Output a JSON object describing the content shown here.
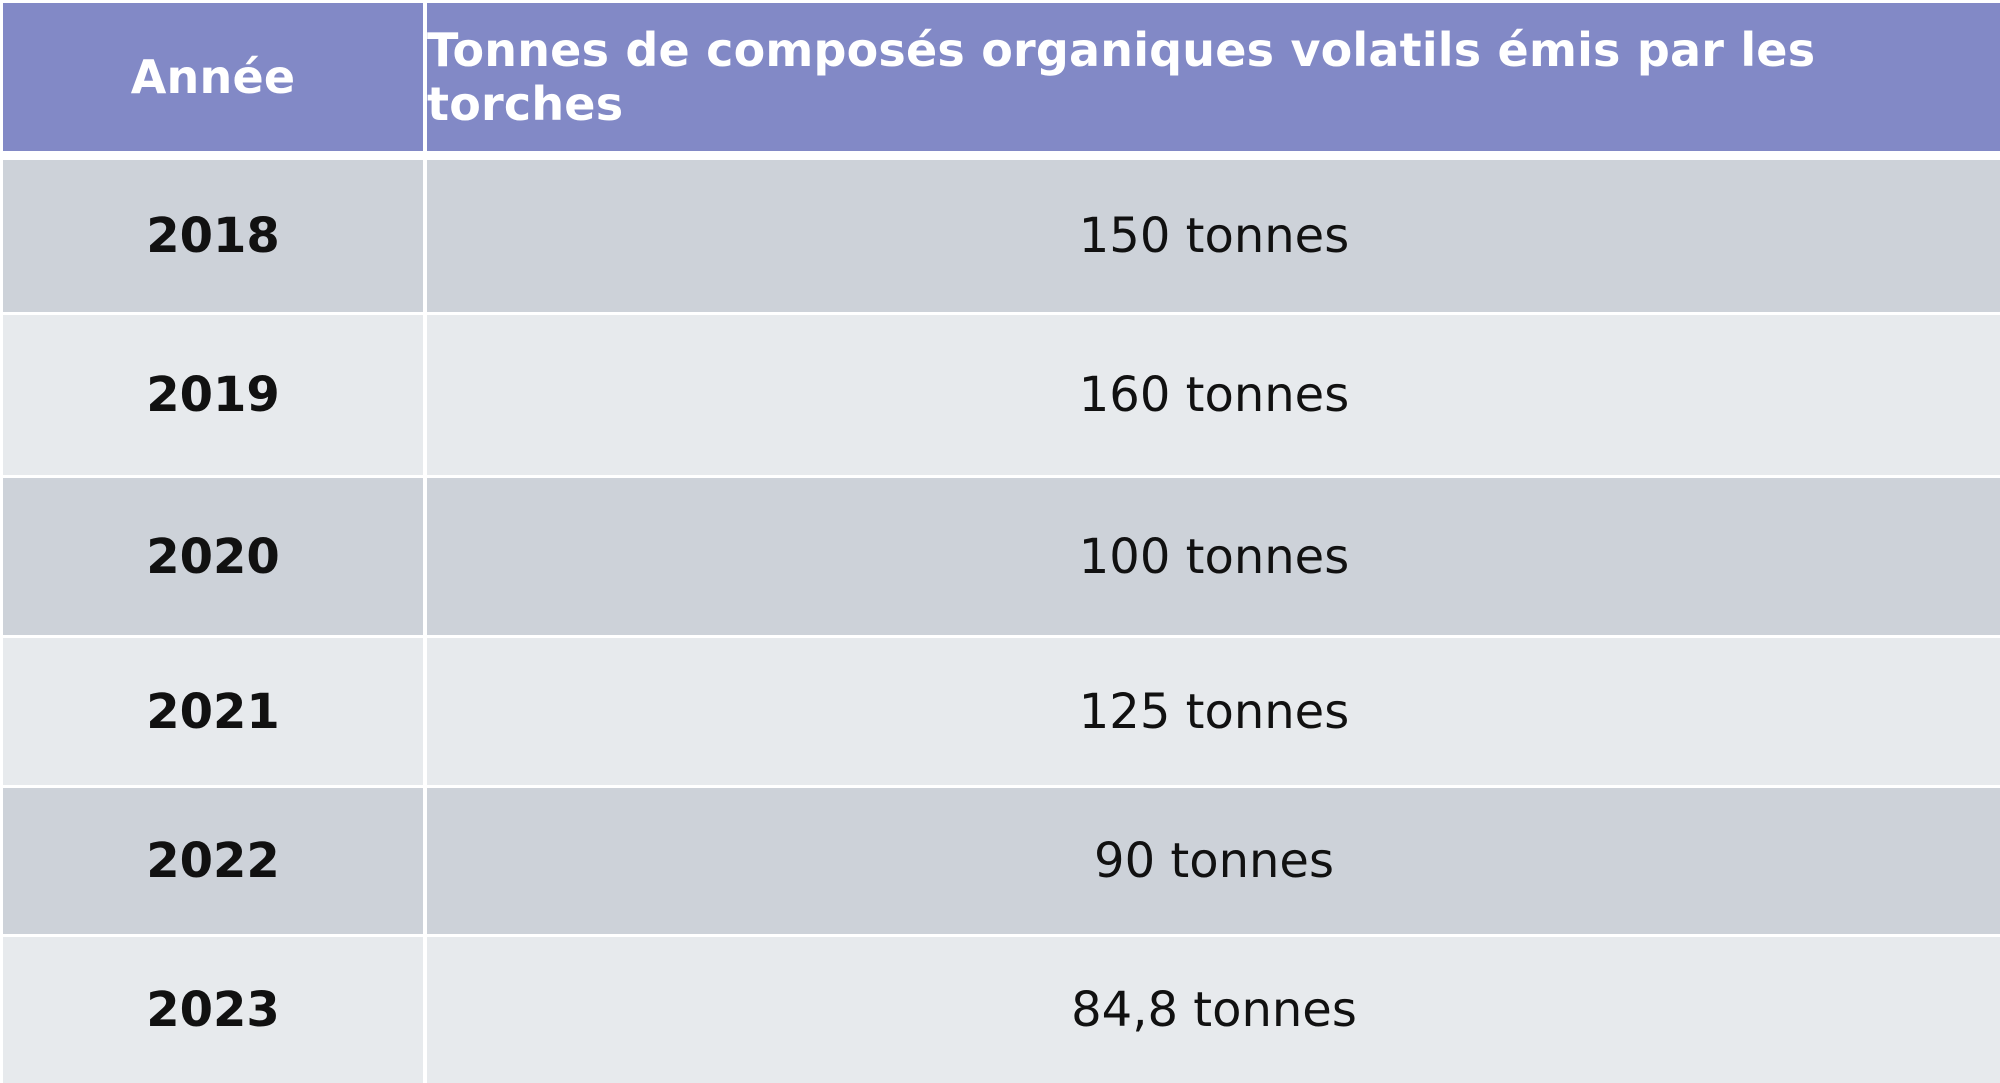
{
  "table": {
    "headers": {
      "year": "Année",
      "value": "Tonnes de composés organiques volatils émis par les torches"
    },
    "rows": [
      {
        "year": "2018",
        "value": "150 tonnes"
      },
      {
        "year": "2019",
        "value": "160 tonnes"
      },
      {
        "year": "2020",
        "value": "100 tonnes"
      },
      {
        "year": "2021",
        "value": "125 tonnes"
      },
      {
        "year": "2022",
        "value": "90 tonnes"
      },
      {
        "year": "2023",
        "value": "84,8 tonnes"
      }
    ]
  },
  "colors": {
    "header_bg": "#8289c6",
    "row_dark": "#cdd2d9",
    "row_light": "#e7eaed"
  }
}
